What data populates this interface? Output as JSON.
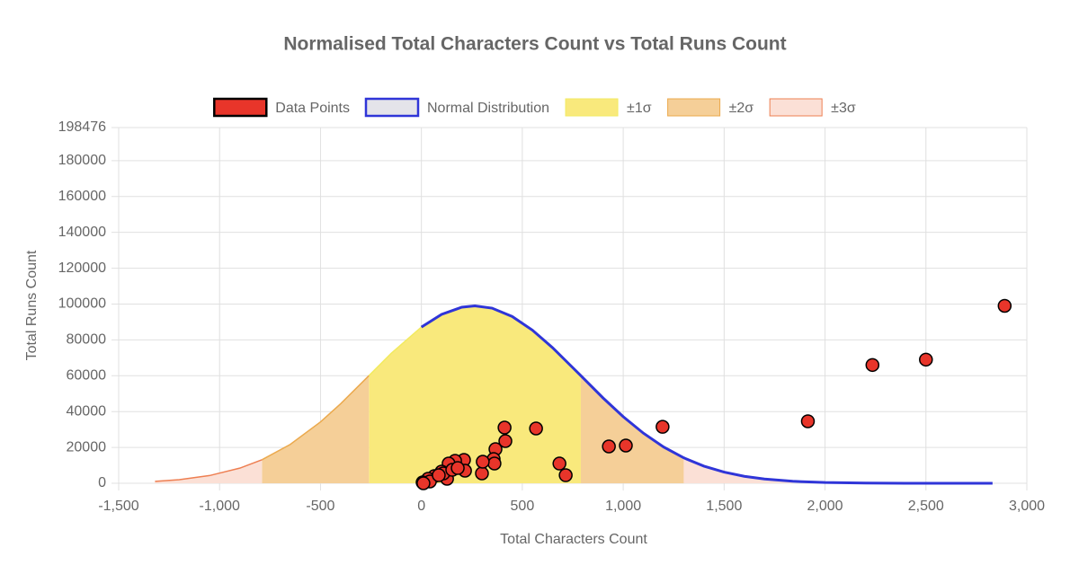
{
  "chart_data": {
    "type": "scatter",
    "title": "Normalised Total Characters Count vs Total Runs Count",
    "x_label": "Total Characters Count",
    "y_label": "Total Runs Count",
    "xlim": [
      -1500,
      3000
    ],
    "ylim": [
      0,
      198476
    ],
    "xticks": [
      {
        "value": -1500,
        "label": "-1,500"
      },
      {
        "value": -1000,
        "label": "-1,000"
      },
      -500,
      0,
      500,
      {
        "value": 1000,
        "label": "1,000"
      },
      {
        "value": 1500,
        "label": "1,500"
      },
      {
        "value": 2000,
        "label": "2,000"
      },
      {
        "value": 2500,
        "label": "2,500"
      },
      {
        "value": 3000,
        "label": "3,000"
      }
    ],
    "yticks": [
      0,
      20000,
      40000,
      60000,
      80000,
      100000,
      120000,
      140000,
      160000,
      180000,
      198476
    ],
    "grid": true,
    "legend": "top",
    "series": [
      {
        "name": "Data Points",
        "type": "scatter",
        "color": "#e8352a",
        "border": "#000000",
        "x": [
          2890,
          2500,
          2235,
          1915,
          1195,
          1013,
          929,
          568,
          715,
          684,
          412,
          416,
          367,
          358,
          362,
          300,
          304,
          211,
          216,
          167,
          135,
          100,
          127,
          64,
          33,
          6,
          42,
          109,
          153,
          180,
          86,
          10
        ],
        "values": [
          99000,
          69000,
          66000,
          34600,
          31500,
          21050,
          20550,
          30570,
          4500,
          11000,
          31070,
          23550,
          19050,
          13530,
          11030,
          5510,
          12030,
          13030,
          7020,
          12530,
          11030,
          6500,
          2500,
          4000,
          2500,
          500,
          1000,
          5500,
          7500,
          8500,
          4500,
          0
        ]
      },
      {
        "name": "Normal Distribution",
        "type": "line",
        "color": "#2f35d8",
        "fill": "#e4e4ea",
        "x": [
          0,
          100,
          200,
          265,
          350,
          450,
          550,
          650,
          790,
          900,
          1000,
          1100,
          1200,
          1300,
          1400,
          1500,
          1600,
          1700,
          1840,
          2000,
          2200,
          2400,
          2600,
          2830
        ],
        "values": [
          87160,
          94230,
          98240,
          99000,
          97710,
          93050,
          85450,
          75650,
          60050,
          47620,
          37160,
          27950,
          20270,
          14190,
          9566,
          6227,
          3903,
          2364,
          1100,
          421,
          111,
          25,
          4,
          0
        ]
      },
      {
        "name": "±1σ",
        "type": "area",
        "color": "#f9e97c",
        "border": "#f2ea60",
        "x": [
          -260,
          -150,
          0,
          100,
          200,
          265,
          350,
          450,
          550,
          650,
          790
        ],
        "values": [
          60050,
          72460,
          87160,
          94230,
          98240,
          99000,
          97710,
          93050,
          85450,
          75650,
          60050
        ]
      },
      {
        "name": "±2σ",
        "type": "area",
        "color": "#f5cf98",
        "border": "#eba94d",
        "x": [
          -790,
          -650,
          -500,
          -400,
          -260,
          null,
          790,
          900,
          1000,
          1100,
          1200,
          1300
        ],
        "values": [
          13140,
          21670,
          34240,
          44390,
          60050,
          null,
          60050,
          47620,
          37160,
          27950,
          20270,
          14190
        ]
      },
      {
        "name": "±3σ",
        "type": "area",
        "color": "#fbe0d6",
        "border": "#ee7f52",
        "x": [
          -1320,
          -1200,
          -1050,
          -900,
          -790,
          null,
          1300,
          1400,
          1500,
          1600,
          1700,
          1840
        ],
        "values": [
          1038,
          2018,
          4300,
          8444,
          13140,
          null,
          14190,
          9566,
          6227,
          3903,
          2364,
          1100
        ]
      }
    ]
  }
}
